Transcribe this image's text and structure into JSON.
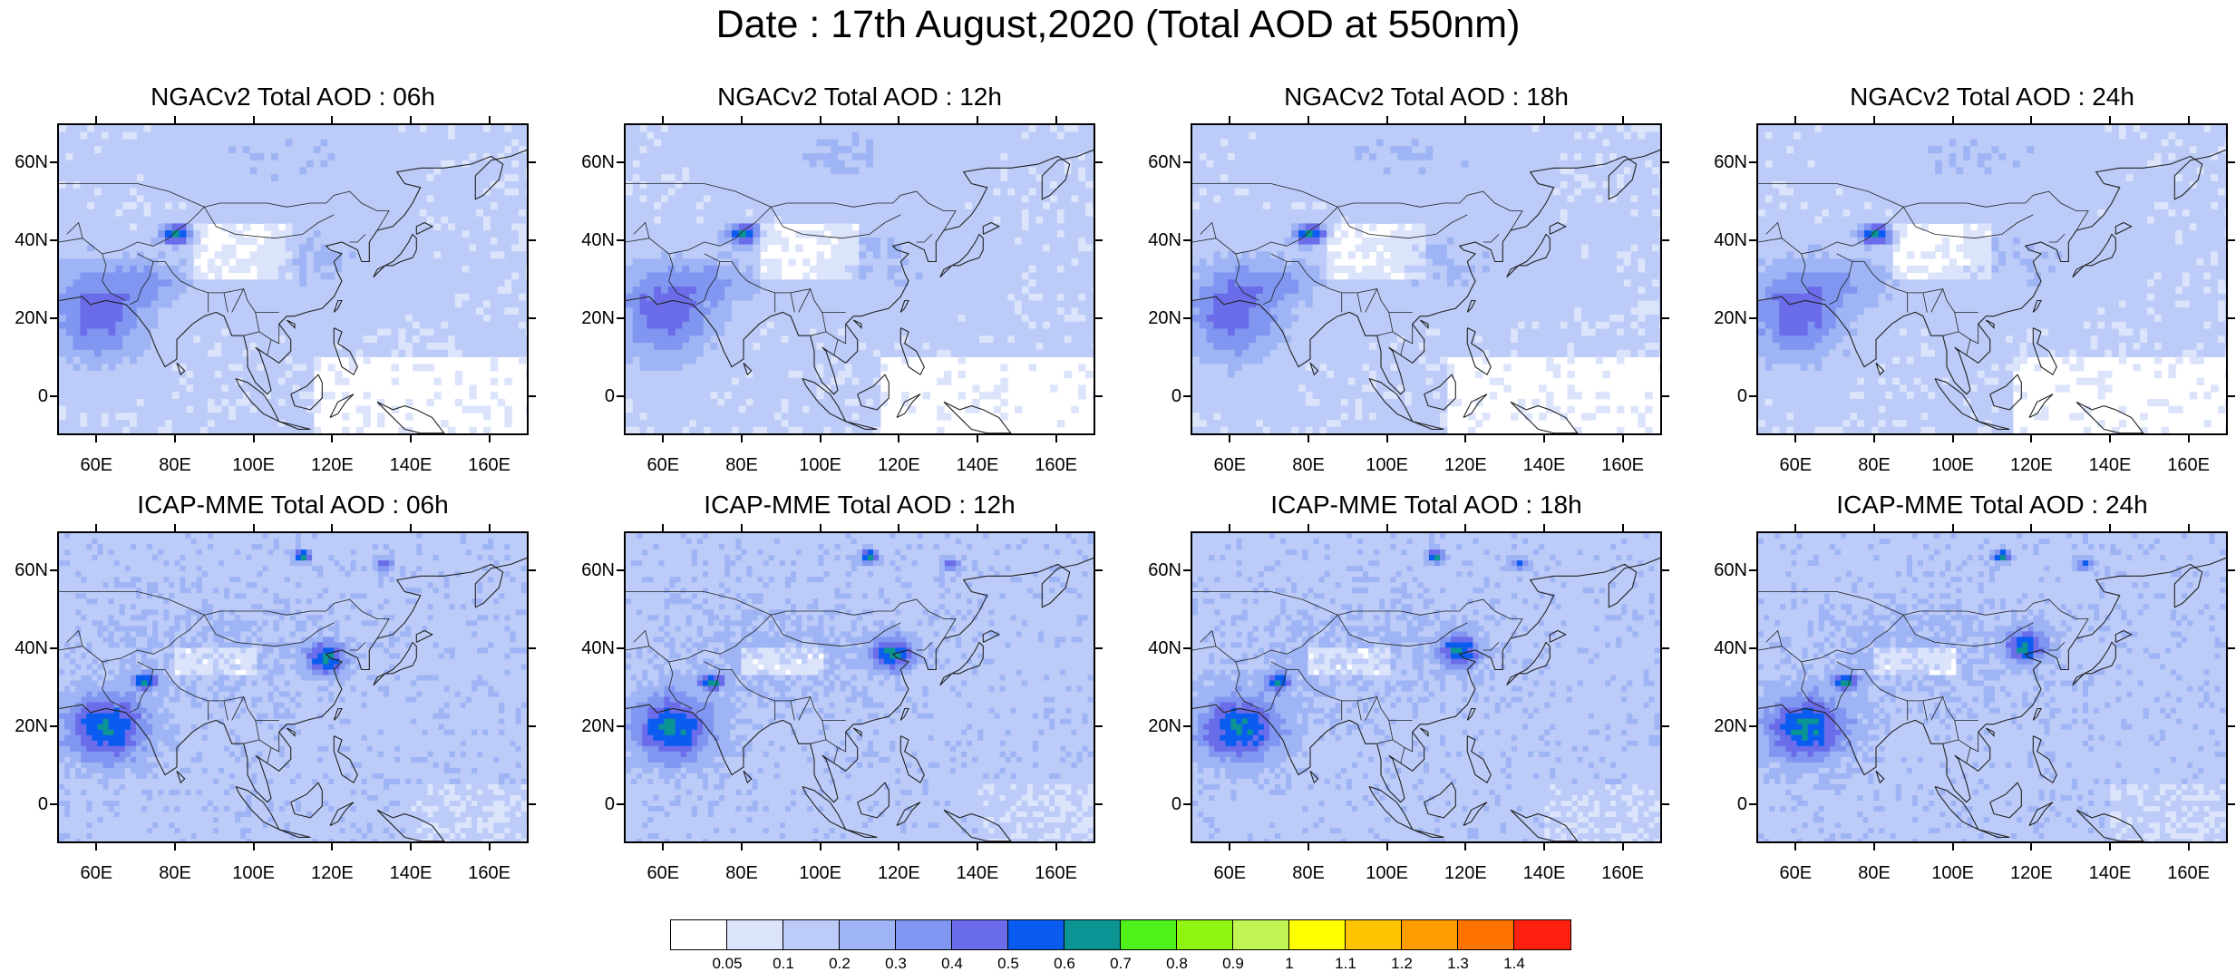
{
  "title": "Date : 17th August,2020 (Total AOD at 550nm)",
  "rows": [
    {
      "model": "NGACv2",
      "panels": [
        {
          "title": "NGACv2 Total AOD : 06h",
          "hour": "06h"
        },
        {
          "title": "NGACv2 Total AOD : 12h",
          "hour": "12h"
        },
        {
          "title": "NGACv2 Total AOD : 18h",
          "hour": "18h"
        },
        {
          "title": "NGACv2 Total AOD : 24h",
          "hour": "24h"
        }
      ]
    },
    {
      "model": "ICAP-MME",
      "panels": [
        {
          "title": "ICAP-MME Total AOD : 06h",
          "hour": "06h"
        },
        {
          "title": "ICAP-MME Total AOD : 12h",
          "hour": "12h"
        },
        {
          "title": "ICAP-MME Total AOD : 18h",
          "hour": "18h"
        },
        {
          "title": "ICAP-MME Total AOD : 24h",
          "hour": "24h"
        }
      ]
    }
  ],
  "axes": {
    "lon_ticks": [
      "60E",
      "80E",
      "100E",
      "120E",
      "140E",
      "160E"
    ],
    "lon_values": [
      60,
      80,
      100,
      120,
      140,
      160
    ],
    "lat_ticks": [
      "60N",
      "40N",
      "20N",
      "0"
    ],
    "lat_values": [
      60,
      40,
      20,
      0
    ],
    "lon_range": [
      50,
      170
    ],
    "lat_range": [
      -10,
      70
    ]
  },
  "colorbar": {
    "labels": [
      "0.05",
      "0.1",
      "0.2",
      "0.3",
      "0.4",
      "0.5",
      "0.6",
      "0.7",
      "0.8",
      "0.9",
      "1",
      "1.1",
      "1.2",
      "1.3",
      "1.4"
    ],
    "colors": [
      "#ffffff",
      "#dce4fc",
      "#bccbf8",
      "#9fb4f4",
      "#8096f0",
      "#6a6cea",
      "#0a5cf0",
      "#0c9494",
      "#50f01a",
      "#90f412",
      "#c0f452",
      "#ffff00",
      "#ffc400",
      "#ff9c00",
      "#ff7200",
      "#ff2010"
    ]
  }
}
